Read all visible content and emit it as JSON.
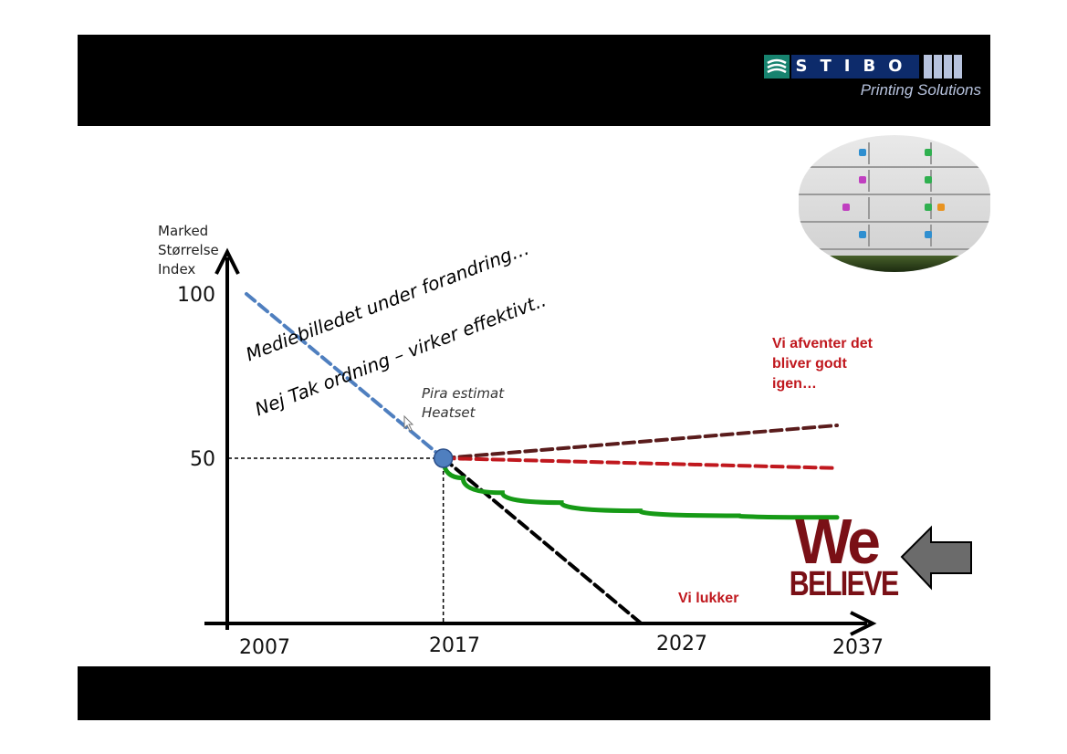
{
  "brand": {
    "name": "STIBO",
    "subtitle": "Printing Solutions"
  },
  "slide": {
    "headline_1": "Mediebilledet under forandring…",
    "headline_2": "Nej Tak ordning – virker effektivt..",
    "estimate_label_1": "Pira estimat",
    "estimate_label_2": "Heatset",
    "note_wait_1": "Vi afventer det",
    "note_wait_2": "bliver godt",
    "note_wait_3": "igen…",
    "note_close": "Vi lukker",
    "we_text": "We",
    "believe_text": "BELIEVE"
  },
  "chart_data": {
    "type": "line",
    "ylabel_lines": [
      "Marked",
      "Størrelse",
      "Index"
    ],
    "xlabel": "",
    "x_ticks": [
      2007,
      2017,
      2027,
      2037
    ],
    "x_tick_labels": [
      "2007",
      "2017",
      "2027",
      "2037"
    ],
    "y_ticks": [
      100,
      50
    ],
    "y_tick_labels": [
      "100",
      "50"
    ],
    "xlim": [
      2007,
      2037
    ],
    "ylim": [
      0,
      100
    ],
    "series": [
      {
        "id": "historic",
        "color": "#4f7fbf",
        "dash": true,
        "points": [
          [
            2007,
            100
          ],
          [
            2017,
            50
          ]
        ]
      },
      {
        "id": "close",
        "color": "#000000",
        "dash": true,
        "points": [
          [
            2017,
            50
          ],
          [
            2027,
            0
          ]
        ]
      },
      {
        "id": "wait-up",
        "color": "#5a1c1c",
        "dash": true,
        "points": [
          [
            2017,
            50
          ],
          [
            2037,
            60
          ]
        ]
      },
      {
        "id": "flat",
        "color": "#c0181e",
        "dash": true,
        "points": [
          [
            2017,
            50
          ],
          [
            2037,
            47
          ]
        ]
      },
      {
        "id": "we-believe",
        "color": "#169a16",
        "dash": false,
        "points": [
          [
            2017,
            50
          ],
          [
            2018,
            44
          ],
          [
            2020,
            39.5
          ],
          [
            2023,
            36.5
          ],
          [
            2027,
            34
          ],
          [
            2032,
            32.5
          ],
          [
            2037,
            32
          ]
        ]
      }
    ],
    "marker": {
      "x": 2017,
      "y": 50,
      "color": "#4f7fbf"
    },
    "guides": [
      {
        "from": [
          2007,
          50
        ],
        "to": [
          2017,
          50
        ]
      },
      {
        "from": [
          2017,
          50
        ],
        "to": [
          2017,
          0
        ]
      }
    ],
    "grid": false
  }
}
